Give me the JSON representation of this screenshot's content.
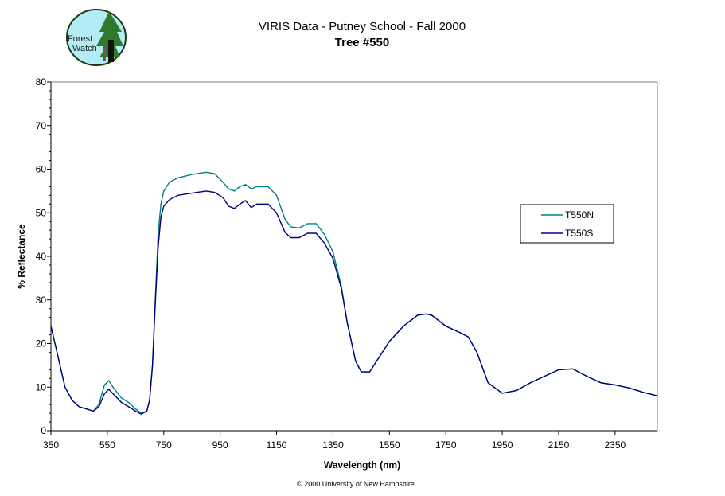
{
  "logo": {
    "text_line1": "Forest",
    "text_line2": "Watch"
  },
  "copyright": "© 2000 University of New Hampshire",
  "chart_data": {
    "type": "line",
    "title": "VIRIS Data - Putney School - Fall 2000",
    "subtitle": "Tree #550",
    "xlabel": "Wavelength (nm)",
    "ylabel": "% Reflectance",
    "xlim": [
      350,
      2500
    ],
    "ylim": [
      0,
      80
    ],
    "xticks": [
      350,
      550,
      750,
      950,
      1150,
      1350,
      1550,
      1750,
      1950,
      2150,
      2350
    ],
    "yticks": [
      0,
      10,
      20,
      30,
      40,
      50,
      60,
      70,
      80
    ],
    "grid": false,
    "legend_position": "right",
    "x": [
      350,
      375,
      400,
      425,
      450,
      475,
      500,
      520,
      540,
      555,
      570,
      600,
      625,
      650,
      670,
      690,
      700,
      710,
      720,
      730,
      740,
      750,
      770,
      800,
      850,
      900,
      930,
      960,
      980,
      1000,
      1020,
      1040,
      1060,
      1080,
      1120,
      1150,
      1180,
      1200,
      1230,
      1260,
      1290,
      1320,
      1350,
      1380,
      1400,
      1430,
      1450,
      1480,
      1500,
      1550,
      1600,
      1650,
      1680,
      1700,
      1750,
      1800,
      1830,
      1860,
      1900,
      1950,
      2000,
      2050,
      2100,
      2150,
      2200,
      2250,
      2300,
      2350,
      2400,
      2450,
      2500
    ],
    "series": [
      {
        "name": "T550N",
        "color": "#008080",
        "values": [
          24,
          17,
          10,
          7,
          5.5,
          5,
          4.5,
          6,
          10.5,
          11.5,
          10,
          7.5,
          6.5,
          5,
          4,
          4.5,
          7,
          15,
          30,
          45,
          52,
          55,
          57,
          58,
          58.8,
          59.3,
          59,
          57,
          55.5,
          55,
          56,
          56.5,
          55.5,
          56,
          56,
          54,
          48.5,
          46.8,
          46.5,
          47.5,
          47.5,
          45,
          41,
          33,
          25,
          16,
          13.5,
          13.5,
          15.5,
          20.5,
          24,
          26.5,
          26.8,
          26.5,
          24,
          22.5,
          21.5,
          18,
          11,
          8.6,
          9.2,
          11,
          12.5,
          14,
          14.2,
          12.5,
          11,
          10.5,
          9.8,
          8.8,
          8
        ]
      },
      {
        "name": "T550S",
        "color": "#000080",
        "values": [
          24,
          17,
          10,
          7,
          5.5,
          5,
          4.5,
          5.5,
          8.5,
          9.5,
          8.5,
          6.5,
          5.5,
          4.5,
          3.8,
          4.5,
          7,
          15,
          29,
          42,
          49,
          51.5,
          53,
          54,
          54.5,
          55,
          54.7,
          53.5,
          51.5,
          51,
          52,
          52.8,
          51.2,
          52,
          52,
          50,
          45.5,
          44.3,
          44.3,
          45.3,
          45.3,
          43,
          39.5,
          32.5,
          25,
          16,
          13.5,
          13.5,
          15.5,
          20.5,
          24,
          26.5,
          26.8,
          26.5,
          24,
          22.5,
          21.5,
          18,
          11,
          8.6,
          9.2,
          11,
          12.5,
          14,
          14.2,
          12.5,
          11,
          10.5,
          9.8,
          8.8,
          8
        ]
      }
    ]
  }
}
